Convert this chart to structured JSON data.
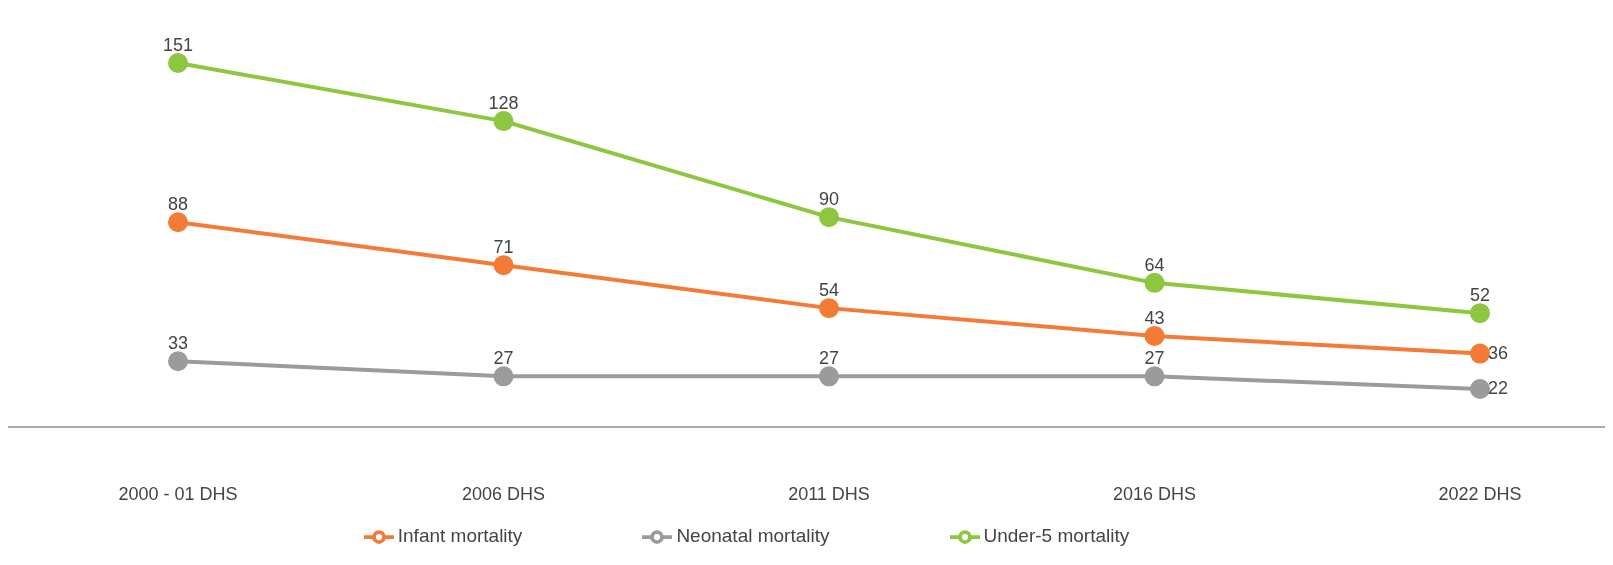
{
  "chart_data": {
    "type": "line",
    "categories": [
      "2000 - 01 DHS",
      "2006 DHS",
      "2011 DHS",
      "2016 DHS",
      "2022 DHS"
    ],
    "series": [
      {
        "name": "Under-5 mortality",
        "color": "#8dc63f",
        "values": [
          151,
          128,
          90,
          64,
          52
        ]
      },
      {
        "name": "Infant mortality",
        "color": "#f47b35",
        "values": [
          88,
          71,
          54,
          43,
          36
        ]
      },
      {
        "name": "Neonatal mortality",
        "color": "#9b9b9b",
        "values": [
          33,
          27,
          27,
          27,
          22
        ]
      }
    ],
    "data_labels": true,
    "legend": "bottom",
    "marker": "circle",
    "line_style": "solid",
    "tick_labels": "x"
  }
}
